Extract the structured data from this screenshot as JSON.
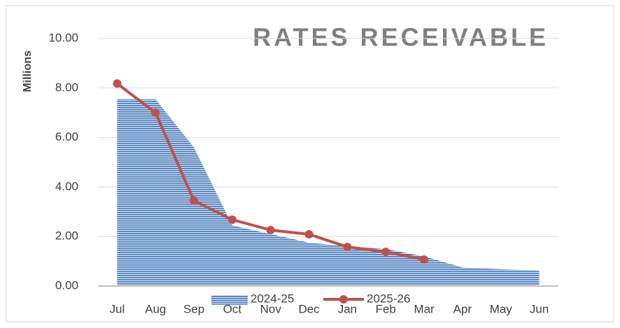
{
  "chart_data": {
    "type": "area_line",
    "title": "RATES RECEIVABLE",
    "y_label": "Millions",
    "categories": [
      "Jul",
      "Aug",
      "Sep",
      "Oct",
      "Nov",
      "Dec",
      "Jan",
      "Feb",
      "Mar",
      "Apr",
      "May",
      "Jun"
    ],
    "series": [
      {
        "name": "2024-25",
        "type": "area",
        "color": "#4f81bd",
        "values": [
          7.55,
          7.55,
          5.6,
          2.45,
          2.1,
          1.75,
          1.6,
          1.5,
          1.2,
          0.75,
          0.68,
          0.62
        ]
      },
      {
        "name": "2025-26",
        "type": "line",
        "color": "#c0504d",
        "values": [
          8.18,
          7.0,
          3.45,
          2.68,
          2.26,
          2.09,
          1.58,
          1.38,
          1.07,
          null,
          null,
          null
        ]
      }
    ],
    "ylim": [
      0,
      10
    ],
    "yticks": [
      {
        "value": 0,
        "label": "0.00"
      },
      {
        "value": 2,
        "label": "2.00"
      },
      {
        "value": 4,
        "label": "4.00"
      },
      {
        "value": 6,
        "label": "6.00"
      },
      {
        "value": 8,
        "label": "8.00"
      },
      {
        "value": 10,
        "label": "10.00"
      }
    ],
    "grid": true,
    "legend": "bottom"
  }
}
